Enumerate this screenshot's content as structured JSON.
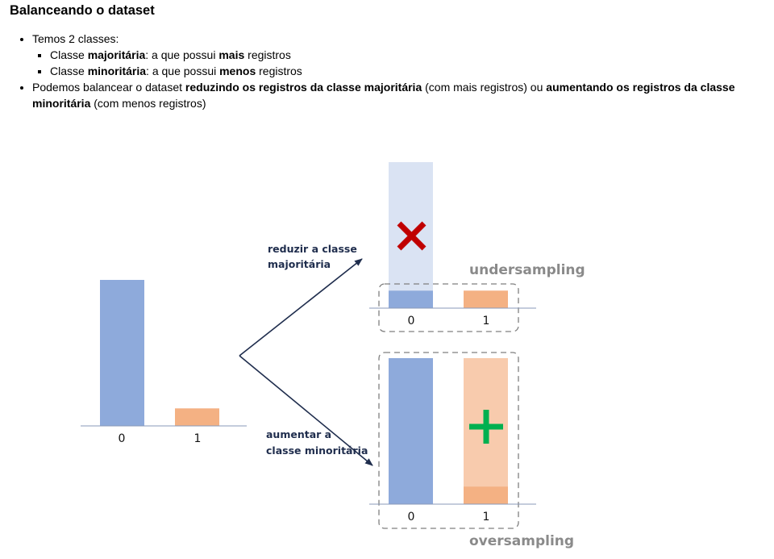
{
  "heading": "Balanceando o dataset",
  "bullets": {
    "b1": "Temos 2 classes:",
    "sub1": {
      "t1": "Classe ",
      "b": "majoritária",
      "t2": ": a que possui ",
      "b2": "mais",
      "t3": " registros"
    },
    "sub2": {
      "t1": "Classe ",
      "b": "minoritária",
      "t2": ": a que possui ",
      "b2": "menos",
      "t3": " registros"
    },
    "b2": {
      "t1": "Podemos balancear o dataset ",
      "bold1": "reduzindo os registros da classe majoritária",
      "t2": " (com mais registros) ou ",
      "bold2": "aumentando os registros da classe minoritária",
      "t3": " (com menos registros)"
    }
  },
  "diagram": {
    "arrow_top_label": [
      "reduzir a classe",
      "majoritária"
    ],
    "arrow_bottom_label": [
      "aumentar a",
      "classe minoritária"
    ],
    "undersampling_label": "undersampling",
    "oversampling_label": "oversampling",
    "class_labels": [
      "0",
      "1"
    ],
    "original_counts": {
      "class_0": 1.0,
      "class_1": 0.12
    },
    "undersampled_counts": {
      "class_0": 0.12,
      "class_1": 0.12,
      "removed_class_0": 0.88
    },
    "oversampled_counts": {
      "class_0": 1.0,
      "class_1": 1.0,
      "original_class_1": 0.12
    },
    "colors": {
      "blue": "#8eaadb",
      "blue_faded": "#dae3f3",
      "orange": "#f4b183",
      "orange_faded": "#f8cbad",
      "red_x": "#c00000",
      "green_plus": "#00b050",
      "arrow": "#1f2d4d",
      "dashed_box": "#7f7f7f"
    },
    "icons": {
      "remove": "x-icon",
      "add": "plus-icon"
    }
  }
}
